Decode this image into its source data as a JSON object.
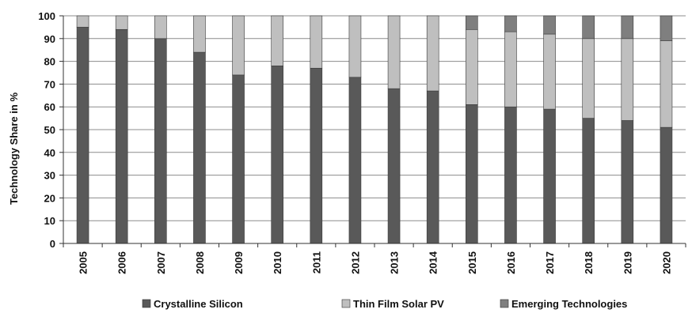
{
  "chart_data": {
    "type": "bar",
    "stacked": true,
    "percent_stacked": true,
    "categories": [
      "2005",
      "2006",
      "2007",
      "2008",
      "2009",
      "2010",
      "2011",
      "2012",
      "2013",
      "2014",
      "2015",
      "2016",
      "2017",
      "2018",
      "2019",
      "2020"
    ],
    "series": [
      {
        "name": "Crystalline Silicon",
        "color": "#595959",
        "values": [
          95,
          94,
          90,
          84,
          74,
          78,
          77,
          73,
          68,
          67,
          61,
          60,
          59,
          55,
          54,
          51
        ]
      },
      {
        "name": "Thin Film Solar PV",
        "color": "#bfbfbf",
        "values": [
          5,
          6,
          10,
          16,
          26,
          22,
          23,
          27,
          32,
          33,
          33,
          33,
          33,
          35,
          36,
          38
        ]
      },
      {
        "name": "Emerging Technologies",
        "color": "#7f7f7f",
        "values": [
          0,
          0,
          0,
          0,
          0,
          0,
          0,
          0,
          0,
          0,
          6,
          7,
          8,
          10,
          10,
          11
        ]
      }
    ],
    "ylabel": "Technology Share in %",
    "xlabel": "",
    "ylim": [
      0,
      100
    ],
    "yticks": [
      0,
      10,
      20,
      30,
      40,
      50,
      60,
      70,
      80,
      90,
      100
    ],
    "grid": true,
    "legend": "bottom"
  }
}
